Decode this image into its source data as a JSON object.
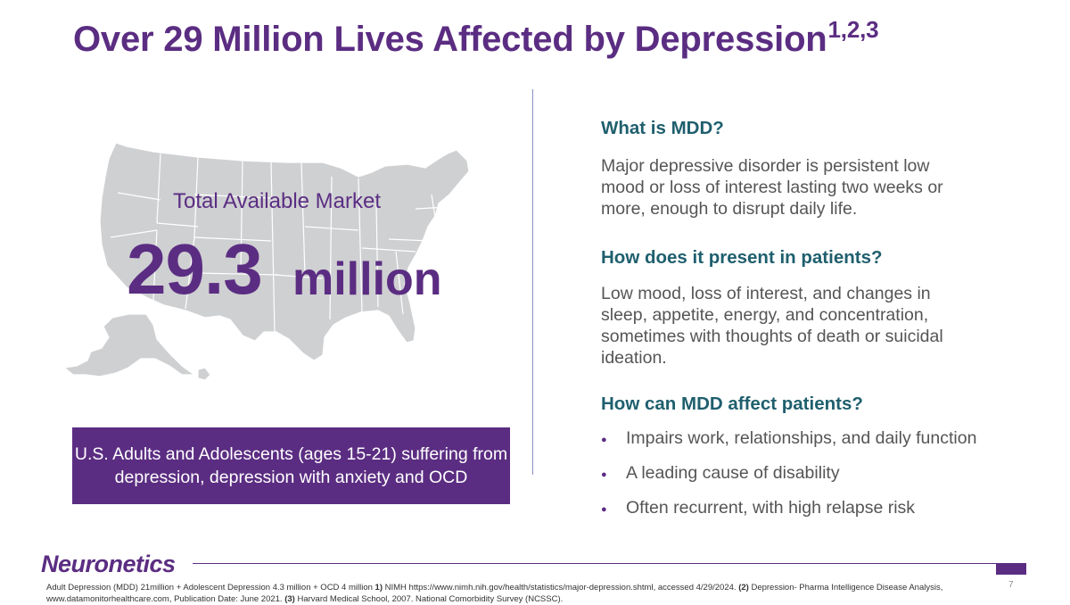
{
  "title": {
    "text": "Over 29 Million Lives Affected by Depression",
    "superscript": "1,2,3"
  },
  "market": {
    "label": "Total Available Market",
    "value": "29.3",
    "unit": "million"
  },
  "callout": "U.S. Adults and Adolescents (ages 15-21) suffering from depression, depression with anxiety and OCD",
  "sections": {
    "what": {
      "heading": "What is MDD?",
      "body": "Major depressive disorder is persistent low mood or loss of interest lasting two weeks or more, enough to disrupt daily life."
    },
    "present": {
      "heading": "How does it present in patients?",
      "body": "Low mood, loss of interest, and changes in sleep, appetite, energy, and concentration, sometimes with thoughts of death or suicidal ideation."
    },
    "affect": {
      "heading": "How can MDD affect patients?",
      "bullets": [
        "Impairs work, relationships, and daily function",
        "A leading cause of disability",
        "Often recurrent, with high relapse risk"
      ]
    }
  },
  "footer": {
    "logo": "Neuronetics",
    "page_number": "7",
    "footnote": {
      "lead": "Adult Depression (MDD) 21million + Adolescent Depression 4.3 million + OCD 4 million ",
      "ref1_num": "1)",
      "ref1_text": " NIMH https://www.nimh.nih.gov/health/statistics/major-depression.shtml, accessed 4/29/2024. ",
      "ref2_num": "(2)",
      "ref2_text": " Depression- Pharma Intelligence Disease Analysis, www.datamonitorhealthcare.com, Publication Date: June 2021. ",
      "ref3_num": "(3)",
      "ref3_text": " Harvard Medical School, 2007. National Comorbidity Survey (NCSSC)."
    }
  },
  "colors": {
    "brand_purple": "#5b2d82",
    "heading_teal": "#1f5f6e",
    "body_gray": "#555555",
    "map_gray": "#cfd0d2"
  }
}
